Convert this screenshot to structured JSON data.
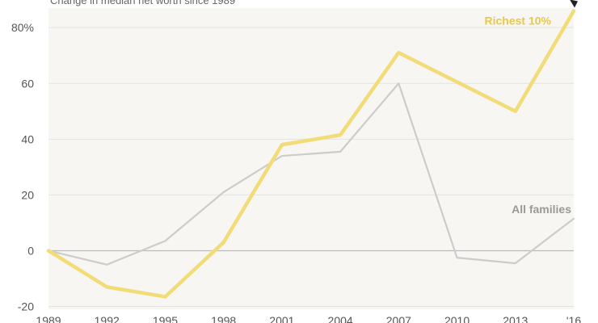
{
  "chart_data": {
    "type": "line",
    "subtitle": "Change in median net worth since 1989",
    "x": [
      "1989",
      "1992",
      "1995",
      "1998",
      "2001",
      "2004",
      "2007",
      "2010",
      "2013",
      "2016"
    ],
    "x_tick_labels": [
      "1989",
      "1992",
      "1995",
      "1998",
      "2001",
      "2004",
      "2007",
      "2010",
      "2013",
      "'16"
    ],
    "y_ticks": [
      -20,
      0,
      20,
      40,
      60,
      80
    ],
    "y_tick_labels": [
      "-20",
      "0",
      "20",
      "40",
      "60",
      "80%"
    ],
    "ylim": [
      -21,
      87
    ],
    "grid": "horizontal",
    "series": [
      {
        "name": "All families",
        "color": "#cccccc",
        "values": [
          0,
          -5,
          3.5,
          21,
          34,
          35.5,
          60,
          -2.5,
          -4.5,
          11.5
        ]
      },
      {
        "name": "Richest 10%",
        "color": "#f2dc77",
        "values": [
          0,
          -13,
          -16.5,
          3,
          38,
          41.5,
          71,
          60.5,
          50,
          86
        ]
      }
    ],
    "label_colors": {
      "All families": "#999999",
      "Richest 10%": "#e7c84b"
    }
  }
}
